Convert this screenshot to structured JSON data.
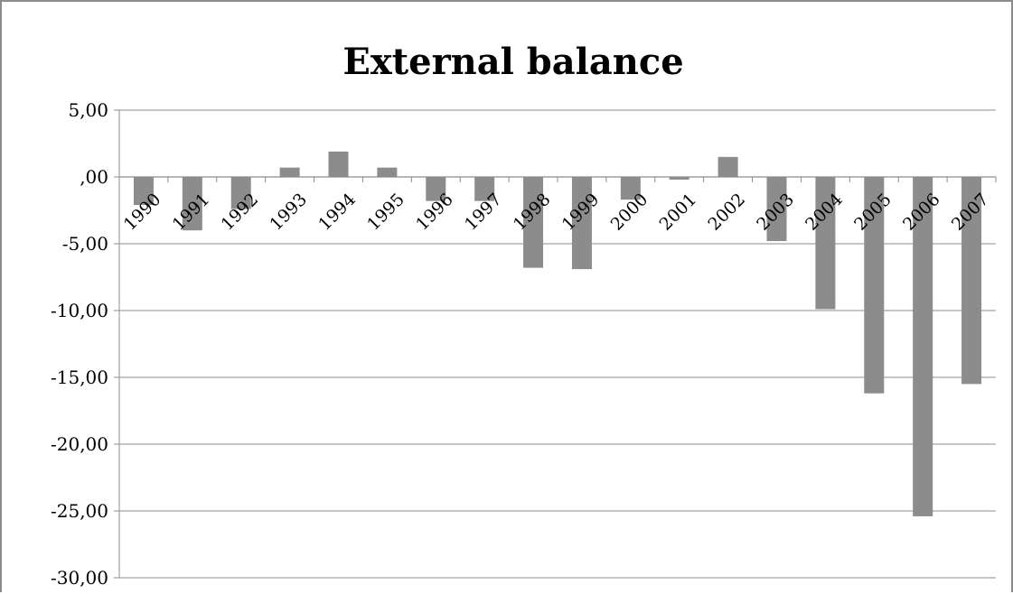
{
  "chart_data": {
    "type": "bar",
    "title": "External balance",
    "xlabel": "",
    "ylabel": "",
    "ylim": [
      -30,
      5
    ],
    "ytick_values": [
      5,
      0,
      -5,
      -10,
      -15,
      -20,
      -25,
      -30
    ],
    "ytick_labels": [
      "5,00",
      ",00",
      "-5,00",
      "-10,00",
      "-15,00",
      "-20,00",
      "-25,00",
      "-30,00"
    ],
    "categories": [
      "1990",
      "1991",
      "1992",
      "1993",
      "1994",
      "1995",
      "1996",
      "1997",
      "1998",
      "1999",
      "2000",
      "2001",
      "2002",
      "2003",
      "2004",
      "2005",
      "2006",
      "2007"
    ],
    "values": [
      -2.1,
      -4.0,
      -2.4,
      0.7,
      1.9,
      0.7,
      -1.8,
      -1.8,
      -6.8,
      -6.9,
      -1.7,
      -0.2,
      1.5,
      -4.8,
      -9.9,
      -16.2,
      -25.4,
      -15.5
    ],
    "grid": true,
    "legend": "none",
    "bar_color": "#8c8c8c"
  }
}
